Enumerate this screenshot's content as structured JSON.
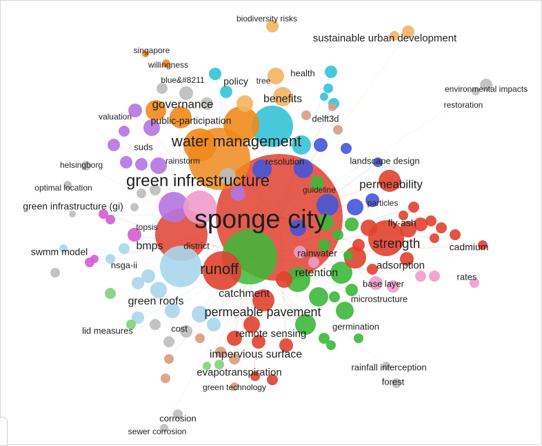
{
  "colors": {
    "red": "#e0412f",
    "green": "#3cb83a",
    "blue": "#4455d8",
    "orange": "#f08a1c",
    "purple": "#b574e0",
    "cyan": "#33c3d6",
    "grey": "#bdbdbd",
    "lightorange": "#f2b562",
    "pink": "#ee9ccc",
    "brown": "#d79b82",
    "lightblue": "#a9d6ec",
    "lightgreen": "#7bd37a",
    "magenta": "#d55ad6"
  },
  "labels": [
    {
      "text": "biodiversity risks"
    },
    {
      "text": "sustainable urban development"
    },
    {
      "text": "singapore"
    },
    {
      "text": "willingness"
    },
    {
      "text": "health"
    },
    {
      "text": "blue&#8211"
    },
    {
      "text": "policy"
    },
    {
      "text": "tree"
    },
    {
      "text": "environmental impacts"
    },
    {
      "text": "restoration"
    },
    {
      "text": "benefits"
    },
    {
      "text": "governance"
    },
    {
      "text": "valuation"
    },
    {
      "text": "public-participation"
    },
    {
      "text": "delft3d"
    },
    {
      "text": "water management"
    },
    {
      "text": "suds"
    },
    {
      "text": "rainstorm"
    },
    {
      "text": "resolution"
    },
    {
      "text": "landscape design"
    },
    {
      "text": "helsingborg"
    },
    {
      "text": "green infrastructure"
    },
    {
      "text": "permeability"
    },
    {
      "text": "optimal location"
    },
    {
      "text": "guideline"
    },
    {
      "text": "particles"
    },
    {
      "text": "green infrastructure (gi)"
    },
    {
      "text": "sponge city"
    },
    {
      "text": "fly-ash"
    },
    {
      "text": "topsis"
    },
    {
      "text": "bmps"
    },
    {
      "text": "district"
    },
    {
      "text": "strength"
    },
    {
      "text": "cadmium"
    },
    {
      "text": "swmm model"
    },
    {
      "text": "rainwater"
    },
    {
      "text": "runoff"
    },
    {
      "text": "nsga-ii"
    },
    {
      "text": "adsorption"
    },
    {
      "text": "retention"
    },
    {
      "text": "rates"
    },
    {
      "text": "base layer"
    },
    {
      "text": "catchment"
    },
    {
      "text": "green roofs"
    },
    {
      "text": "microstructure"
    },
    {
      "text": "permeable pavement"
    },
    {
      "text": "germination"
    },
    {
      "text": "lid measures"
    },
    {
      "text": "cost"
    },
    {
      "text": "remote sensing"
    },
    {
      "text": "impervious surface"
    },
    {
      "text": "rainfall interception"
    },
    {
      "text": "evapotranspiration"
    },
    {
      "text": "forest"
    },
    {
      "text": "green technology"
    },
    {
      "text": "corrosion"
    },
    {
      "text": "sewer corrosion"
    }
  ]
}
